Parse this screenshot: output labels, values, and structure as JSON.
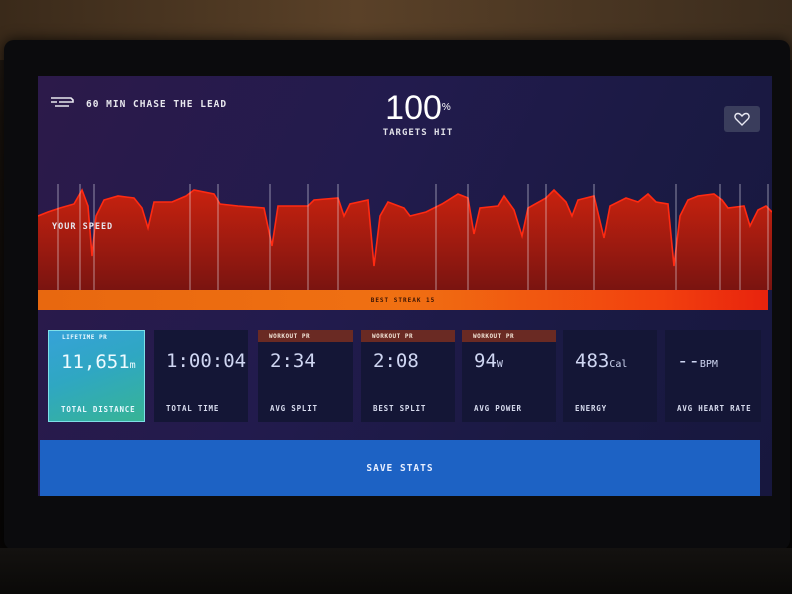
{
  "header": {
    "class_title": "60 MIN CHASE THE LEAD",
    "targets_value": "100",
    "targets_unit": "%",
    "targets_label": "TARGETS HIT",
    "favorite_icon": "heart-icon",
    "logo_icon": "brand-logo-icon"
  },
  "chart": {
    "series_label": "YOUR SPEED",
    "streak_label": "BEST STREAK 15"
  },
  "stats": [
    {
      "badge": "LIFETIME PR",
      "value": "11,651",
      "unit": "m",
      "label": "TOTAL DISTANCE"
    },
    {
      "badge": "",
      "value": "1:00:04",
      "unit": "",
      "label": "TOTAL TIME"
    },
    {
      "badge": "WORKOUT PR",
      "value": "2:34",
      "unit": "",
      "label": "AVG SPLIT"
    },
    {
      "badge": "WORKOUT PR",
      "value": "2:08",
      "unit": "",
      "label": "BEST SPLIT"
    },
    {
      "badge": "WORKOUT PR",
      "value": "94",
      "unit": "W",
      "label": "AVG POWER"
    },
    {
      "badge": "",
      "value": "483",
      "unit": "Cal",
      "label": "ENERGY"
    },
    {
      "badge": "",
      "value": "--",
      "unit": "BPM",
      "label": "AVG HEART RATE"
    }
  ],
  "footer": {
    "save_label": "SAVE STATS"
  },
  "colors": {
    "accent_orange": "#f07012",
    "chart_red": "#ff2a12",
    "save_blue": "#1d62c4",
    "lifetime_teal": "#2fa7c2",
    "pr_badge": "#6a2a23"
  }
}
